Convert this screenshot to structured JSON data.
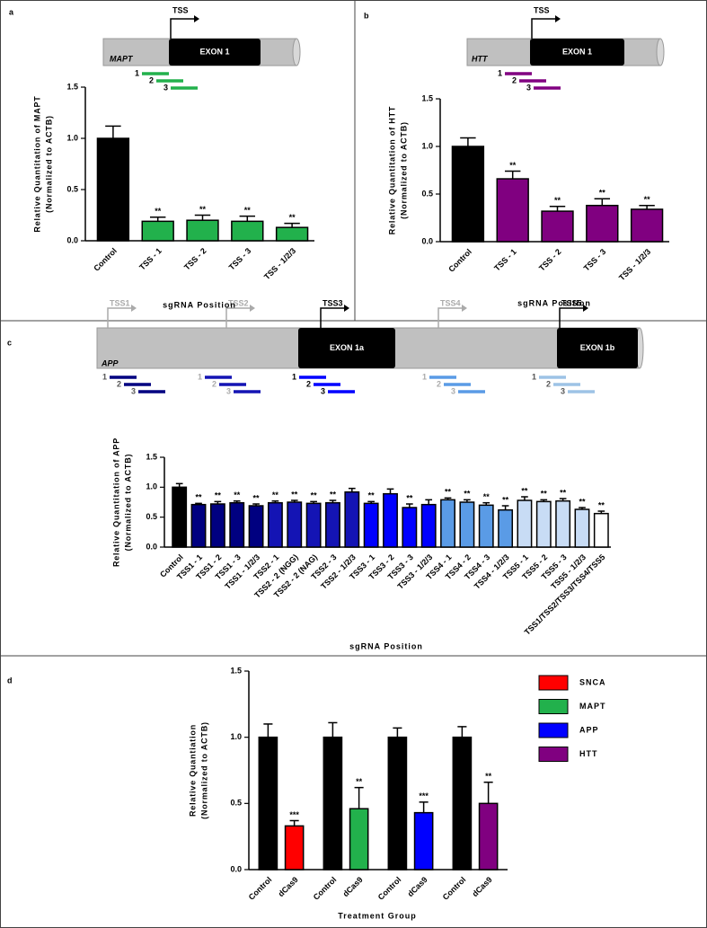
{
  "chart_data": [
    {
      "type": "bar",
      "panel": "a",
      "diagram": {
        "tss": "TSS",
        "exon": "EXON 1",
        "gene": "MAPT",
        "guides": [
          "1",
          "2",
          "3"
        ]
      },
      "ylabel": [
        "Relative Quantitation of MAPT",
        "(Normalized to ACTB)"
      ],
      "xlabel": "sgRNA Position",
      "categories": [
        "Control",
        "TSS - 1",
        "TSS - 2",
        "TSS - 3",
        "TSS - 1/2/3"
      ],
      "values": [
        1.0,
        0.19,
        0.2,
        0.19,
        0.13
      ],
      "errors": [
        0.12,
        0.04,
        0.05,
        0.05,
        0.04
      ],
      "significance": [
        null,
        "**",
        "**",
        "**",
        "**"
      ],
      "colors": [
        "#000000",
        "#22b14c",
        "#22b14c",
        "#22b14c",
        "#22b14c"
      ],
      "ylim": [
        0,
        1.5
      ],
      "yticks": [
        {
          "value": 0,
          "label": "0.0"
        },
        0.5,
        {
          "value": 1,
          "label": "1.0"
        },
        1.5
      ]
    },
    {
      "type": "bar",
      "panel": "b",
      "diagram": {
        "tss": "TSS",
        "exon": "EXON 1",
        "gene": "HTT",
        "guides": [
          "1",
          "2",
          "3"
        ]
      },
      "ylabel": [
        "Relative Quantitation of HTT",
        "(Normalized to ACTB)"
      ],
      "xlabel": "sgRNA Position",
      "categories": [
        "Control",
        "TSS - 1",
        "TSS - 2",
        "TSS - 3",
        "TSS - 1/2/3"
      ],
      "values": [
        1.0,
        0.66,
        0.32,
        0.38,
        0.34
      ],
      "errors": [
        0.09,
        0.08,
        0.05,
        0.07,
        0.04
      ],
      "significance": [
        null,
        "**",
        "**",
        "**",
        "**"
      ],
      "colors": [
        "#000000",
        "#800080",
        "#800080",
        "#800080",
        "#800080"
      ],
      "ylim": [
        0,
        1.5
      ],
      "yticks": [
        {
          "value": 0,
          "label": "0.0"
        },
        0.5,
        {
          "value": 1,
          "label": "1.0"
        },
        1.5
      ]
    },
    {
      "type": "bar",
      "panel": "c",
      "diagram": {
        "tss": [
          "TSS1",
          "TSS2",
          "TSS3",
          "TSS4",
          "TSS5"
        ],
        "exons": [
          "EXON 1a",
          "EXON 1b"
        ],
        "gene": "APP",
        "guides": [
          "1",
          "2",
          "3"
        ]
      },
      "ylabel": [
        "Relative Quantitation of APP",
        "(Normalized to ACTB)"
      ],
      "xlabel": "sgRNA Position",
      "categories": [
        "Control",
        "TSS1 - 1",
        "TSS1 - 2",
        "TSS1 - 3",
        "TSS1 - 1/2/3",
        "TSS2 - 1",
        "TSS2 - 2 (NGG)",
        "TSS2 - 2 (NAG)",
        "TSS2 - 3",
        "TSS2 - 1/2/3",
        "TSS3 - 1",
        "TSS3 - 2",
        "TSS3 - 3",
        "TSS3 - 1/2/3",
        "TSS4 - 1",
        "TSS4 - 2",
        "TSS4 - 3",
        "TSS4 - 1/2/3",
        "TSS5 - 1",
        "TSS5 - 2",
        "TSS5 - 3",
        "TSS5 - 1/2/3",
        "TSS1/TSS2/TSS3/TSS4/TSS5"
      ],
      "values": [
        1.0,
        0.71,
        0.72,
        0.74,
        0.69,
        0.74,
        0.75,
        0.73,
        0.74,
        0.92,
        0.73,
        0.89,
        0.66,
        0.71,
        0.79,
        0.75,
        0.7,
        0.62,
        0.78,
        0.76,
        0.77,
        0.63,
        0.56
      ],
      "errors": [
        0.06,
        0.02,
        0.04,
        0.03,
        0.03,
        0.03,
        0.03,
        0.03,
        0.04,
        0.06,
        0.03,
        0.08,
        0.06,
        0.08,
        0.03,
        0.04,
        0.04,
        0.07,
        0.06,
        0.03,
        0.04,
        0.03,
        0.04
      ],
      "significance": [
        null,
        "**",
        "**",
        "**",
        "**",
        "**",
        "**",
        "**",
        "**",
        null,
        "**",
        null,
        "**",
        null,
        "**",
        "**",
        "**",
        "**",
        "**",
        "**",
        "**",
        "**",
        "**"
      ],
      "colors": [
        "#000000",
        "#000080",
        "#000080",
        "#000080",
        "#000080",
        "#1414b4",
        "#1414b4",
        "#1414b4",
        "#1414b4",
        "#1414b4",
        "#0000ff",
        "#0000ff",
        "#0000ff",
        "#0000ff",
        "#5a9be6",
        "#5a9be6",
        "#5a9be6",
        "#5a9be6",
        "#c8dcf5",
        "#c8dcf5",
        "#c8dcf5",
        "#c8dcf5",
        "#ffffff"
      ],
      "ylim": [
        0,
        1.5
      ],
      "yticks": [
        {
          "value": 0,
          "label": "0.0"
        },
        0.5,
        {
          "value": 1,
          "label": "1.0"
        },
        1.5
      ]
    },
    {
      "type": "grouped-bar",
      "panel": "d",
      "ylabel": [
        "Relative Quantiation",
        "(Normalized to ACTB)"
      ],
      "xlabel": "Treatment Group",
      "categories": [
        "Control",
        "dCas9"
      ],
      "control_color": "#000000",
      "series": [
        {
          "name": "SNCA",
          "color": "#ff0000",
          "values": [
            1.0,
            0.33
          ],
          "errors": [
            0.1,
            0.04
          ],
          "significance": [
            null,
            "***"
          ]
        },
        {
          "name": "MAPT",
          "color": "#22b14c",
          "values": [
            1.0,
            0.46
          ],
          "errors": [
            0.11,
            0.16
          ],
          "significance": [
            null,
            "**"
          ]
        },
        {
          "name": "APP",
          "color": "#0000ff",
          "values": [
            1.0,
            0.43
          ],
          "errors": [
            0.07,
            0.08
          ],
          "significance": [
            null,
            "***"
          ]
        },
        {
          "name": "HTT",
          "color": "#800080",
          "values": [
            1.0,
            0.5
          ],
          "errors": [
            0.08,
            0.16
          ],
          "significance": [
            null,
            "**"
          ]
        }
      ],
      "ylim": [
        0,
        1.5
      ],
      "yticks": [
        {
          "value": 0,
          "label": "0.0"
        },
        0.5,
        {
          "value": 1,
          "label": "1.0"
        },
        1.5
      ]
    }
  ]
}
